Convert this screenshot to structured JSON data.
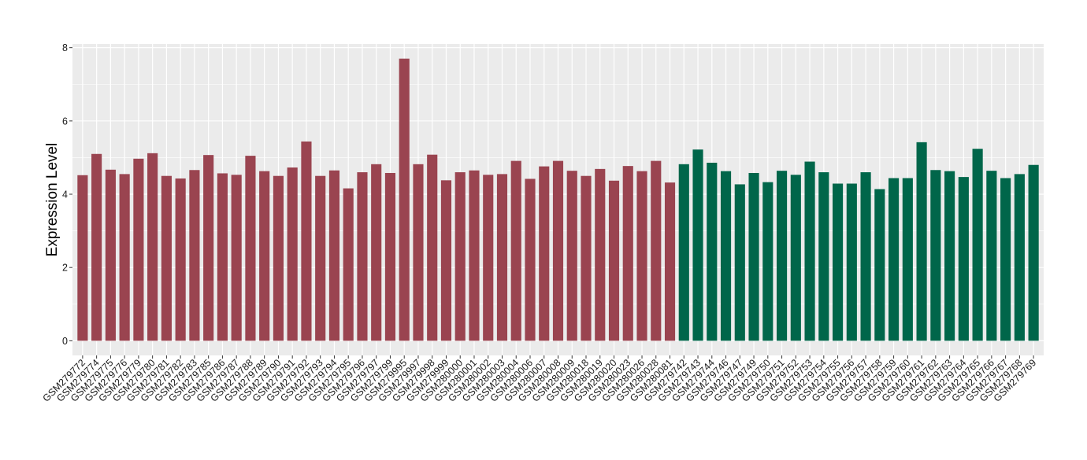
{
  "chart_data": {
    "type": "bar",
    "ylabel": "Expression Level",
    "xlabel": "",
    "ylim": [
      -0.4,
      8.1
    ],
    "yticks": [
      0,
      2,
      4,
      6,
      8
    ],
    "grid": true,
    "legend": "none",
    "colors": {
      "group1": "#9a4450",
      "group2": "#00664a",
      "panel": "#ebebeb",
      "grid": "#ffffff"
    },
    "categories": [
      "GSM279772",
      "GSM279774",
      "GSM279775",
      "GSM279776",
      "GSM279779",
      "GSM279780",
      "GSM279781",
      "GSM279782",
      "GSM279783",
      "GSM279785",
      "GSM279786",
      "GSM279787",
      "GSM279788",
      "GSM279789",
      "GSM279790",
      "GSM279791",
      "GSM279792",
      "GSM279793",
      "GSM279794",
      "GSM279795",
      "GSM279796",
      "GSM279797",
      "GSM279799",
      "GSM279995",
      "GSM279997",
      "GSM279998",
      "GSM279999",
      "GSM280000",
      "GSM280001",
      "GSM280002",
      "GSM280003",
      "GSM280004",
      "GSM280006",
      "GSM280007",
      "GSM280008",
      "GSM280009",
      "GSM280018",
      "GSM280019",
      "GSM280020",
      "GSM280023",
      "GSM280026",
      "GSM280028",
      "GSM280081",
      "GSM279742",
      "GSM279743",
      "GSM279744",
      "GSM279746",
      "GSM279747",
      "GSM279749",
      "GSM279750",
      "GSM279751",
      "GSM279752",
      "GSM279753",
      "GSM279754",
      "GSM279755",
      "GSM279756",
      "GSM279757",
      "GSM279758",
      "GSM279759",
      "GSM279760",
      "GSM279761",
      "GSM279762",
      "GSM279763",
      "GSM279764",
      "GSM279765",
      "GSM279766",
      "GSM279767",
      "GSM279768",
      "GSM279769"
    ],
    "values": [
      4.52,
      5.1,
      4.67,
      4.55,
      4.97,
      5.12,
      4.5,
      4.43,
      4.66,
      5.07,
      4.57,
      4.53,
      5.05,
      4.63,
      4.5,
      4.73,
      5.44,
      4.5,
      4.65,
      4.16,
      4.6,
      4.82,
      4.58,
      7.7,
      4.82,
      5.08,
      4.38,
      4.6,
      4.65,
      4.53,
      4.55,
      4.91,
      4.42,
      4.76,
      4.91,
      4.64,
      4.5,
      4.69,
      4.37,
      4.77,
      4.63,
      4.91,
      4.32,
      4.82,
      5.22,
      4.86,
      4.63,
      4.27,
      4.58,
      4.33,
      4.64,
      4.53,
      4.89,
      4.6,
      4.29,
      4.29,
      4.6,
      4.14,
      4.44,
      4.44,
      5.42,
      4.66,
      4.63,
      4.47,
      5.24,
      4.64,
      4.44,
      4.55,
      4.8
    ],
    "groups": [
      1,
      1,
      1,
      1,
      1,
      1,
      1,
      1,
      1,
      1,
      1,
      1,
      1,
      1,
      1,
      1,
      1,
      1,
      1,
      1,
      1,
      1,
      1,
      1,
      1,
      1,
      1,
      1,
      1,
      1,
      1,
      1,
      1,
      1,
      1,
      1,
      1,
      1,
      1,
      1,
      1,
      1,
      1,
      2,
      2,
      2,
      2,
      2,
      2,
      2,
      2,
      2,
      2,
      2,
      2,
      2,
      2,
      2,
      2,
      2,
      2,
      2,
      2,
      2,
      2,
      2,
      2,
      2,
      2
    ]
  }
}
